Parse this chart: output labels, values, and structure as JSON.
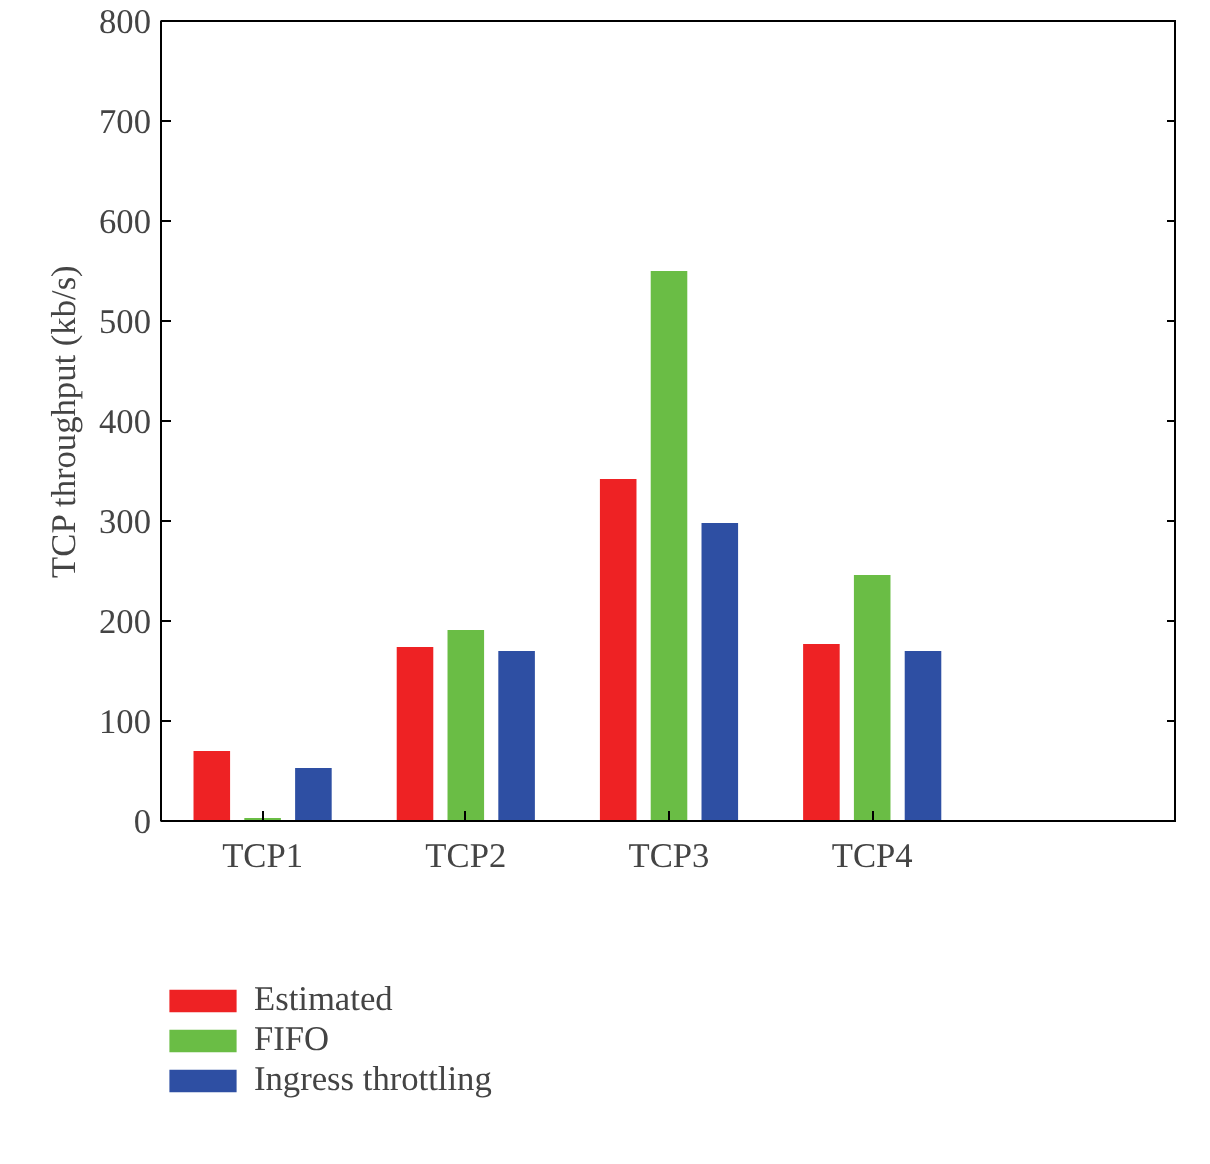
{
  "chart_data": {
    "type": "bar",
    "ylabel": "TCP throughput (kb/s)",
    "categories": [
      "TCP1",
      "TCP2",
      "TCP3",
      "TCP4",
      null
    ],
    "series": [
      {
        "name": "Estimated",
        "color": "#ee2224",
        "values": [
          70,
          174,
          342,
          177,
          null
        ]
      },
      {
        "name": "FIFO",
        "color": "#6abd45",
        "values": [
          3,
          191,
          550,
          246,
          null
        ]
      },
      {
        "name": "Ingress throttling",
        "color": "#2e4fa3",
        "values": [
          53,
          170,
          298,
          170,
          null
        ]
      }
    ],
    "ylim": [
      0,
      800
    ],
    "yticks": [
      0,
      100,
      200,
      300,
      400,
      500,
      600,
      700,
      800
    ],
    "grid": false,
    "legend": "bottom left"
  }
}
